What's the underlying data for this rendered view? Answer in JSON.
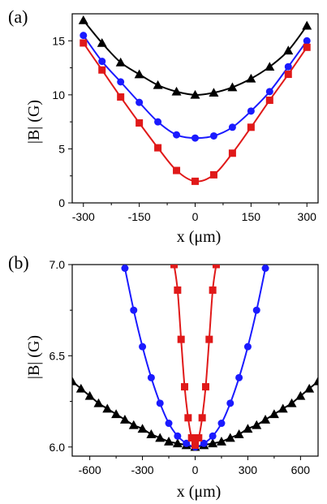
{
  "chart_data": [
    {
      "panel_label": "(a)",
      "type": "line",
      "xlabel": "x (μm)",
      "ylabel": "|B| (G)",
      "xlim": [
        -330,
        330
      ],
      "ylim": [
        0,
        17.5
      ],
      "xticks": [
        -300,
        -150,
        0,
        150,
        300
      ],
      "yticks": [
        0,
        5,
        10,
        15
      ],
      "series": [
        {
          "color": "#000000",
          "marker": "triangle",
          "x": [
            -300,
            -250,
            -200,
            -150,
            -100,
            -50,
            0,
            50,
            100,
            150,
            200,
            250,
            300
          ],
          "y": [
            16.9,
            14.8,
            13.0,
            11.9,
            10.9,
            10.3,
            10.0,
            10.2,
            10.7,
            11.5,
            12.6,
            14.1,
            16.4
          ]
        },
        {
          "color": "#1a1aff",
          "marker": "circle",
          "x": [
            -300,
            -250,
            -200,
            -150,
            -100,
            -50,
            0,
            50,
            100,
            150,
            200,
            250,
            300
          ],
          "y": [
            15.5,
            13.1,
            11.2,
            9.3,
            7.5,
            6.3,
            6.0,
            6.2,
            7.0,
            8.5,
            10.3,
            12.6,
            15.0
          ]
        },
        {
          "color": "#e01919",
          "marker": "square",
          "x": [
            -300,
            -250,
            -200,
            -150,
            -100,
            -50,
            0,
            50,
            100,
            150,
            200,
            250,
            300
          ],
          "y": [
            14.8,
            12.3,
            9.8,
            7.4,
            5.1,
            3.0,
            2.0,
            2.6,
            4.6,
            7.0,
            9.5,
            11.9,
            14.4
          ]
        }
      ]
    },
    {
      "panel_label": "(b)",
      "type": "line",
      "xlabel": "x (μm)",
      "ylabel": "|B| (G)",
      "xlim": [
        -700,
        700
      ],
      "ylim": [
        5.95,
        7.0
      ],
      "xticks": [
        -600,
        -300,
        0,
        300,
        600
      ],
      "yticks": [
        6.0,
        6.5,
        7.0
      ],
      "yticklabels": [
        "6.0",
        "6.5",
        "7.0"
      ],
      "series": [
        {
          "color": "#000000",
          "marker": "triangle",
          "x": [
            -700,
            -650,
            -600,
            -550,
            -500,
            -450,
            -400,
            -350,
            -300,
            -250,
            -200,
            -150,
            -100,
            -50,
            0,
            50,
            100,
            150,
            200,
            250,
            300,
            350,
            400,
            450,
            500,
            550,
            600,
            650,
            700
          ],
          "y": [
            6.36,
            6.32,
            6.28,
            6.24,
            6.21,
            6.18,
            6.15,
            6.12,
            6.1,
            6.07,
            6.05,
            6.03,
            6.02,
            6.01,
            6.0,
            6.01,
            6.02,
            6.03,
            6.05,
            6.07,
            6.1,
            6.12,
            6.15,
            6.18,
            6.21,
            6.24,
            6.28,
            6.32,
            6.36
          ]
        },
        {
          "color": "#1a1aff",
          "marker": "circle",
          "x": [
            -400,
            -350,
            -300,
            -250,
            -200,
            -150,
            -100,
            -50,
            0,
            50,
            100,
            150,
            200,
            250,
            300,
            350,
            400
          ],
          "y": [
            6.98,
            6.75,
            6.55,
            6.38,
            6.24,
            6.13,
            6.06,
            6.02,
            6.0,
            6.02,
            6.06,
            6.13,
            6.24,
            6.38,
            6.55,
            6.75,
            6.98
          ]
        },
        {
          "color": "#e01919",
          "marker": "square",
          "x": [
            -120,
            -100,
            -80,
            -60,
            -40,
            -20,
            0,
            20,
            40,
            60,
            80,
            100,
            120
          ],
          "y": [
            7.0,
            6.86,
            6.59,
            6.33,
            6.16,
            6.05,
            6.01,
            6.05,
            6.16,
            6.33,
            6.59,
            6.86,
            7.0
          ]
        }
      ]
    }
  ]
}
